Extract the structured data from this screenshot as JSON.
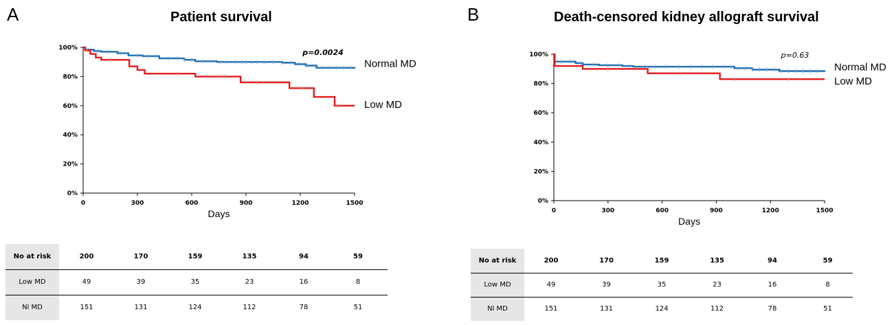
{
  "chart_data": [
    {
      "type": "line",
      "panel_label": "A",
      "title": "Patient survival",
      "xlabel": "Days",
      "ylabel": "",
      "xlim": [
        0,
        1500
      ],
      "ylim": [
        0,
        100
      ],
      "x_ticks": [
        "0",
        "300",
        "600",
        "900",
        "1200",
        "1500"
      ],
      "y_ticks": [
        "0%",
        "20%",
        "40%",
        "60%",
        "80%",
        "100%"
      ],
      "annotation": "p=0.0024",
      "series": [
        {
          "name": "Normal MD",
          "color": "#1f6fb5",
          "steps": [
            [
              0,
              100
            ],
            [
              12,
              98.5
            ],
            [
              60,
              97.5
            ],
            [
              100,
              97
            ],
            [
              190,
              96
            ],
            [
              250,
              94.5
            ],
            [
              330,
              94
            ],
            [
              420,
              92.5
            ],
            [
              560,
              91.5
            ],
            [
              620,
              90.5
            ],
            [
              740,
              90
            ],
            [
              1100,
              89.5
            ],
            [
              1170,
              88.5
            ],
            [
              1230,
              87.5
            ],
            [
              1290,
              86
            ],
            [
              1500,
              85.5
            ]
          ],
          "censor_x": [
            30,
            80,
            140,
            210,
            300,
            360,
            400,
            470,
            520,
            560,
            600,
            660,
            700,
            760,
            790,
            840,
            880,
            900,
            930,
            960,
            1000,
            1050,
            1100,
            1150,
            1190,
            1240,
            1280,
            1320,
            1360,
            1400,
            1440,
            1480
          ]
        },
        {
          "name": "Low MD",
          "color": "#e31a1c",
          "steps": [
            [
              0,
              100
            ],
            [
              10,
              98
            ],
            [
              40,
              95.5
            ],
            [
              70,
              93
            ],
            [
              100,
              91.5
            ],
            [
              255,
              87
            ],
            [
              300,
              84.5
            ],
            [
              340,
              82
            ],
            [
              620,
              80
            ],
            [
              870,
              76
            ],
            [
              1140,
              72
            ],
            [
              1275,
              66
            ],
            [
              1390,
              60
            ],
            [
              1500,
              60
            ]
          ],
          "censor_x": [
            20,
            150,
            520,
            720,
            740,
            760,
            780,
            900,
            960,
            1200,
            1220,
            1400,
            1420
          ]
        }
      ],
      "risk_table": {
        "header": "No at risk",
        "columns": [
          "200",
          "170",
          "159",
          "135",
          "94",
          "59"
        ],
        "rows": [
          {
            "label": "Low MD",
            "values": [
              "49",
              "39",
              "35",
              "23",
              "16",
              "8"
            ]
          },
          {
            "label": "Nl MD",
            "values": [
              "151",
              "131",
              "124",
              "112",
              "78",
              "51"
            ]
          }
        ]
      }
    },
    {
      "type": "line",
      "panel_label": "B",
      "title": "Death-censored kidney allograft survival",
      "xlabel": "Days",
      "ylabel": "",
      "xlim": [
        0,
        1500
      ],
      "ylim": [
        0,
        100
      ],
      "x_ticks": [
        "0",
        "300",
        "600",
        "900",
        "1200",
        "1500"
      ],
      "y_ticks": [
        "0%",
        "20%",
        "40%",
        "60%",
        "80%",
        "100%"
      ],
      "annotation": "p=0.63",
      "series": [
        {
          "name": "Normal MD",
          "color": "#1f6fb5",
          "steps": [
            [
              0,
              100
            ],
            [
              5,
              95
            ],
            [
              120,
              94
            ],
            [
              160,
              93
            ],
            [
              250,
              92.5
            ],
            [
              380,
              92
            ],
            [
              440,
              91.5
            ],
            [
              1000,
              90.5
            ],
            [
              1100,
              89.5
            ],
            [
              1250,
              88.5
            ],
            [
              1500,
              88
            ]
          ],
          "censor_x": [
            40,
            90,
            150,
            220,
            300,
            360,
            420,
            500,
            560,
            620,
            690,
            760,
            820,
            880,
            940,
            980,
            1020,
            1060,
            1100,
            1140,
            1180,
            1220,
            1260,
            1300,
            1340,
            1380,
            1420,
            1460
          ]
        },
        {
          "name": "Low MD",
          "color": "#e31a1c",
          "steps": [
            [
              0,
              100
            ],
            [
              5,
              92
            ],
            [
              160,
              90
            ],
            [
              520,
              87
            ],
            [
              920,
              83
            ],
            [
              1500,
              83
            ]
          ],
          "censor_x": [
            300,
            700,
            1000,
            1300
          ]
        }
      ],
      "risk_table": {
        "header": "No at risk",
        "columns": [
          "200",
          "170",
          "159",
          "135",
          "94",
          "59"
        ],
        "rows": [
          {
            "label": "Low MD",
            "values": [
              "49",
              "39",
              "35",
              "23",
              "16",
              "8"
            ]
          },
          {
            "label": "Nl MD",
            "values": [
              "151",
              "131",
              "124",
              "112",
              "78",
              "51"
            ]
          }
        ]
      }
    }
  ]
}
